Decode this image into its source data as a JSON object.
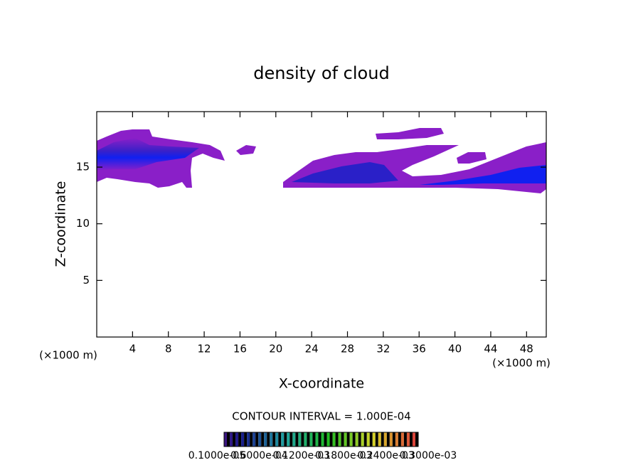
{
  "chart_data": {
    "type": "contour",
    "title": "density of cloud",
    "x_label": "X-coordinate",
    "y_label": "Z-coordinate",
    "x_unit": "(×1000 m)",
    "y_unit": "(×1000 m)",
    "xlim": [
      0,
      50.2
    ],
    "xticks": [
      4,
      8,
      12,
      16,
      20,
      24,
      28,
      32,
      36,
      40,
      44,
      48
    ],
    "ylim": [
      0,
      19.9
    ],
    "yticks": [
      5,
      10,
      15
    ],
    "contour_note": "CONTOUR INTERVAL = 1.000E-04",
    "colorbar_labels": [
      "0.1000e-05",
      "0.6000e-04",
      "0.1200e-03",
      "0.1800e-03",
      "0.2400e-03",
      "0.3000e-03"
    ]
  }
}
